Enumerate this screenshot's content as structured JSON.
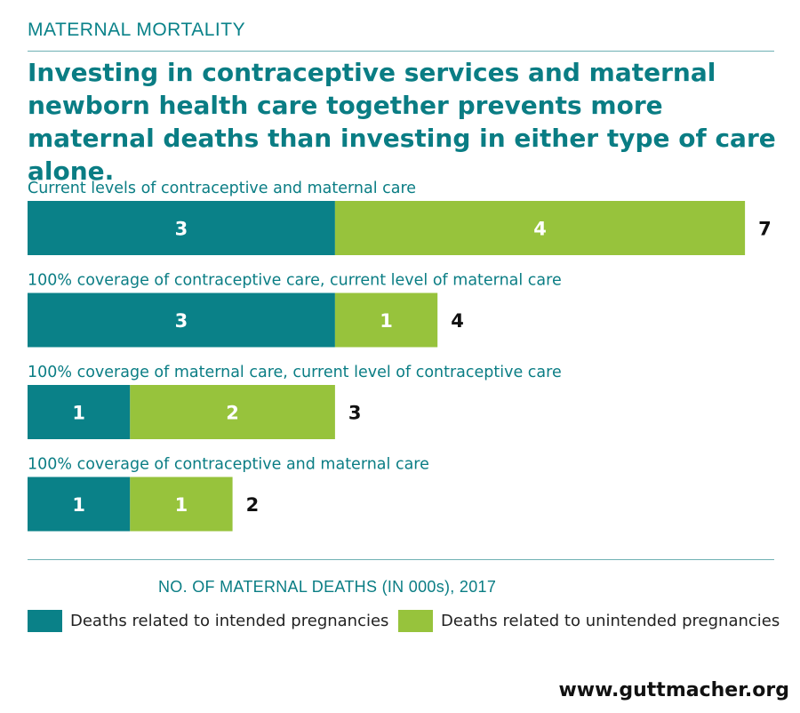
{
  "kicker": "MATERNAL MORTALITY",
  "headline": "Investing in contraceptive services and maternal newborn health care together prevents more maternal deaths than investing in either type of care alone.",
  "unit_label": "NO. OF MATERNAL DEATHS (IN 000s), 2017",
  "legend": [
    {
      "label": "Deaths related to intended pregnancies",
      "color": "#0a8188"
    },
    {
      "label": "Deaths related to unintended pregnancies",
      "color": "#97c33c"
    }
  ],
  "source_url": "www.guttmacher.org",
  "chart_data": {
    "type": "bar",
    "orientation": "horizontal",
    "stacked": true,
    "categories": [
      "Current levels of contraceptive and maternal care",
      "100% coverage of contraceptive care, current level of maternal care",
      "100% coverage of maternal care, current level of contraceptive care",
      "100% coverage of contraceptive and maternal care"
    ],
    "series": [
      {
        "name": "Deaths related to intended pregnancies",
        "color": "#0a8188",
        "values": [
          3,
          3,
          1,
          1
        ]
      },
      {
        "name": "Deaths related to unintended pregnancies",
        "color": "#97c33c",
        "values": [
          4,
          1,
          2,
          1
        ]
      }
    ],
    "totals": [
      7,
      4,
      3,
      2
    ],
    "xlim": [
      0,
      7
    ]
  }
}
